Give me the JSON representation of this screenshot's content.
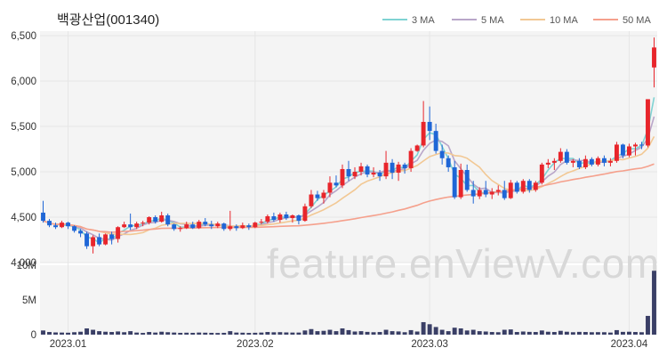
{
  "chart_data": {
    "type": "candlestick",
    "title": "백광산업(001340)",
    "watermark": "feature.enViewV.com",
    "legend": {
      "placement": "top-right",
      "items": [
        {
          "name": "3 MA",
          "color": "#7fd3d3"
        },
        {
          "name": "5 MA",
          "color": "#b9a6c9"
        },
        {
          "name": "10 MA",
          "color": "#f2c894"
        },
        {
          "name": "50 MA",
          "color": "#f5a08c"
        }
      ]
    },
    "colors": {
      "up": "#e8252b",
      "down": "#1f66d6",
      "volume": "#3a3f66",
      "grid": "#e6e6e6",
      "plot_bg": "#f4f4f4"
    },
    "price_axis": {
      "ylim": [
        4000,
        6550
      ],
      "ticks": [
        4000,
        4500,
        5000,
        5500,
        6000,
        6500
      ],
      "tick_labels": [
        "4,000",
        "4,500",
        "5,000",
        "5,500",
        "6,000",
        "6,500"
      ]
    },
    "volume_axis": {
      "ylim": [
        0,
        10000000
      ],
      "ticks": [
        0,
        5000000,
        10000000
      ],
      "tick_labels": [
        "0",
        "5M",
        "10M"
      ]
    },
    "x_ticks": [
      {
        "index": 4,
        "label": "2023.01"
      },
      {
        "index": 34,
        "label": "2023.02"
      },
      {
        "index": 62,
        "label": "2023.03"
      },
      {
        "index": 94,
        "label": "2023.04"
      }
    ],
    "candles": [
      [
        4550,
        4680,
        4440,
        4460,
        600000
      ],
      [
        4460,
        4480,
        4390,
        4410,
        380000
      ],
      [
        4410,
        4440,
        4370,
        4390,
        320000
      ],
      [
        4390,
        4460,
        4380,
        4440,
        300000
      ],
      [
        4440,
        4450,
        4370,
        4400,
        280000
      ],
      [
        4400,
        4410,
        4330,
        4350,
        350000
      ],
      [
        4350,
        4370,
        4280,
        4320,
        420000
      ],
      [
        4320,
        4340,
        4150,
        4180,
        900000
      ],
      [
        4180,
        4300,
        4100,
        4280,
        700000
      ],
      [
        4280,
        4320,
        4180,
        4200,
        500000
      ],
      [
        4200,
        4320,
        4190,
        4310,
        420000
      ],
      [
        4310,
        4340,
        4200,
        4260,
        380000
      ],
      [
        4260,
        4400,
        4220,
        4390,
        460000
      ],
      [
        4390,
        4450,
        4380,
        4420,
        350000
      ],
      [
        4420,
        4540,
        4360,
        4390,
        500000
      ],
      [
        4390,
        4450,
        4370,
        4430,
        300000
      ],
      [
        4430,
        4460,
        4400,
        4440,
        250000
      ],
      [
        4440,
        4510,
        4420,
        4500,
        380000
      ],
      [
        4500,
        4520,
        4430,
        4450,
        300000
      ],
      [
        4450,
        4560,
        4440,
        4520,
        420000
      ],
      [
        4520,
        4540,
        4400,
        4420,
        350000
      ],
      [
        4420,
        4430,
        4350,
        4370,
        300000
      ],
      [
        4370,
        4400,
        4340,
        4380,
        260000
      ],
      [
        4380,
        4450,
        4370,
        4420,
        280000
      ],
      [
        4420,
        4450,
        4370,
        4380,
        260000
      ],
      [
        4380,
        4470,
        4370,
        4450,
        300000
      ],
      [
        4450,
        4490,
        4400,
        4420,
        280000
      ],
      [
        4420,
        4460,
        4370,
        4400,
        260000
      ],
      [
        4400,
        4450,
        4380,
        4430,
        240000
      ],
      [
        4430,
        4440,
        4350,
        4370,
        260000
      ],
      [
        4370,
        4570,
        4350,
        4400,
        500000
      ],
      [
        4400,
        4420,
        4350,
        4380,
        300000
      ],
      [
        4380,
        4440,
        4370,
        4410,
        280000
      ],
      [
        4410,
        4430,
        4360,
        4390,
        250000
      ],
      [
        4390,
        4450,
        4380,
        4440,
        270000
      ],
      [
        4440,
        4480,
        4420,
        4450,
        300000
      ],
      [
        4450,
        4530,
        4430,
        4510,
        380000
      ],
      [
        4510,
        4550,
        4450,
        4470,
        340000
      ],
      [
        4470,
        4550,
        4440,
        4530,
        360000
      ],
      [
        4530,
        4560,
        4470,
        4490,
        320000
      ],
      [
        4490,
        4530,
        4440,
        4520,
        300000
      ],
      [
        4520,
        4530,
        4420,
        4460,
        300000
      ],
      [
        4460,
        4650,
        4450,
        4620,
        600000
      ],
      [
        4620,
        4800,
        4600,
        4750,
        800000
      ],
      [
        4750,
        4790,
        4680,
        4710,
        500000
      ],
      [
        4710,
        4800,
        4650,
        4770,
        550000
      ],
      [
        4770,
        4950,
        4720,
        4880,
        700000
      ],
      [
        4880,
        4960,
        4830,
        4850,
        500000
      ],
      [
        4850,
        5080,
        4820,
        5030,
        900000
      ],
      [
        5030,
        5120,
        4900,
        4950,
        650000
      ],
      [
        4950,
        5050,
        4920,
        5000,
        450000
      ],
      [
        5000,
        5100,
        4960,
        5060,
        500000
      ],
      [
        5060,
        5080,
        4940,
        4970,
        400000
      ],
      [
        4970,
        5050,
        4940,
        4990,
        350000
      ],
      [
        4990,
        5020,
        4900,
        4950,
        380000
      ],
      [
        4950,
        5230,
        4920,
        5100,
        700000
      ],
      [
        5100,
        5140,
        4920,
        4990,
        500000
      ],
      [
        4990,
        5110,
        4900,
        5080,
        460000
      ],
      [
        5080,
        5100,
        4980,
        5040,
        350000
      ],
      [
        5040,
        5260,
        5000,
        5230,
        650000
      ],
      [
        5230,
        5300,
        5220,
        5290,
        450000
      ],
      [
        5290,
        5780,
        5270,
        5550,
        1800000
      ],
      [
        5550,
        5720,
        5350,
        5450,
        1500000
      ],
      [
        5450,
        5530,
        5200,
        5230,
        1100000
      ],
      [
        5230,
        5300,
        5080,
        5150,
        700000
      ],
      [
        5150,
        5180,
        5000,
        5050,
        500000
      ],
      [
        5050,
        5120,
        4700,
        4720,
        1000000
      ],
      [
        4720,
        5090,
        4700,
        5020,
        900000
      ],
      [
        5020,
        5080,
        4780,
        4800,
        600000
      ],
      [
        4800,
        4900,
        4650,
        4730,
        700000
      ],
      [
        4730,
        4830,
        4700,
        4800,
        500000
      ],
      [
        4800,
        4900,
        4720,
        4750,
        450000
      ],
      [
        4750,
        4820,
        4700,
        4780,
        380000
      ],
      [
        4780,
        4850,
        4740,
        4800,
        350000
      ],
      [
        4800,
        4900,
        4690,
        4710,
        700000
      ],
      [
        4710,
        4910,
        4700,
        4880,
        750000
      ],
      [
        4880,
        4900,
        4760,
        4780,
        380000
      ],
      [
        4780,
        4920,
        4760,
        4900,
        450000
      ],
      [
        4900,
        4920,
        4770,
        4800,
        400000
      ],
      [
        4800,
        4900,
        4780,
        4880,
        380000
      ],
      [
        4880,
        5100,
        4860,
        5080,
        600000
      ],
      [
        5080,
        5140,
        5040,
        5100,
        420000
      ],
      [
        5100,
        5150,
        5020,
        5120,
        380000
      ],
      [
        5120,
        5260,
        5100,
        5220,
        550000
      ],
      [
        5220,
        5250,
        5080,
        5100,
        420000
      ],
      [
        5100,
        5140,
        5050,
        5120,
        350000
      ],
      [
        5120,
        5150,
        5030,
        5050,
        400000
      ],
      [
        5050,
        5180,
        5030,
        5140,
        380000
      ],
      [
        5140,
        5160,
        5060,
        5080,
        350000
      ],
      [
        5080,
        5170,
        5060,
        5150,
        360000
      ],
      [
        5150,
        5180,
        5060,
        5100,
        350000
      ],
      [
        5100,
        5150,
        5060,
        5120,
        300000
      ],
      [
        5120,
        5330,
        5100,
        5300,
        650000
      ],
      [
        5300,
        5310,
        5150,
        5180,
        400000
      ],
      [
        5180,
        5310,
        5160,
        5280,
        420000
      ],
      [
        5280,
        5320,
        5180,
        5300,
        380000
      ],
      [
        5300,
        5330,
        5250,
        5290,
        350000
      ],
      [
        5290,
        5800,
        5270,
        5800,
        2700000
      ],
      [
        6150,
        6480,
        5930,
        6370,
        9200000
      ]
    ]
  }
}
